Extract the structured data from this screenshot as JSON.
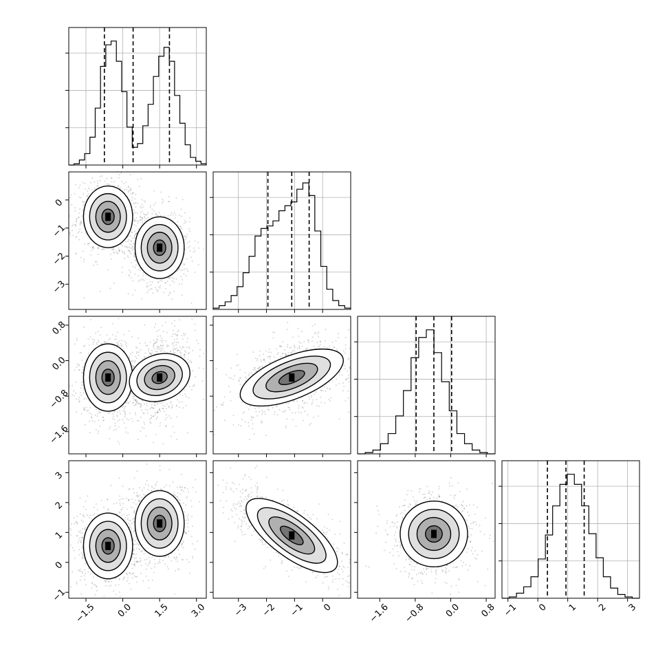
{
  "chart_data": {
    "type": "corner",
    "description": "Corner plot of 4 parameters: 1D histograms on the diagonal with 16/50/84 percentile dashed lines, 2D density/contour plots below.",
    "grid": true,
    "parameters": [
      {
        "range": [
          -2.2,
          3.4
        ],
        "ticks": [
          -1.5,
          0.0,
          1.5,
          3.0
        ],
        "tick_labels": [
          "−1.5",
          "0.0",
          "1.5",
          "3.0"
        ],
        "quantiles": [
          -0.75,
          0.42,
          1.9
        ],
        "histogram": [
          0,
          0.01,
          0.04,
          0.09,
          0.22,
          0.45,
          0.78,
          0.95,
          0.98,
          0.82,
          0.58,
          0.3,
          0.14,
          0.17,
          0.31,
          0.48,
          0.7,
          0.86,
          0.93,
          0.82,
          0.55,
          0.33,
          0.16,
          0.06,
          0.03,
          0.01
        ]
      },
      {
        "range": [
          -3.9,
          1.0
        ],
        "ticks": [
          -3,
          -2,
          -1,
          0
        ],
        "tick_labels": [
          "−3",
          "−2",
          "−1",
          "0"
        ],
        "quantiles": [
          -1.95,
          -1.1,
          -0.48
        ],
        "histogram": [
          0.01,
          0.03,
          0.06,
          0.11,
          0.18,
          0.29,
          0.42,
          0.58,
          0.64,
          0.66,
          0.7,
          0.78,
          0.82,
          0.85,
          0.95,
          1.0,
          0.9,
          0.62,
          0.34,
          0.16,
          0.07,
          0.03,
          0.01
        ]
      },
      {
        "range": [
          -2.1,
          1.0
        ],
        "ticks": [
          -1.6,
          -0.8,
          0.0,
          0.8
        ],
        "tick_labels": [
          "−1.6",
          "−0.8",
          "0.0",
          "0.8"
        ],
        "quantiles": [
          -0.78,
          -0.38,
          0.02
        ],
        "histogram": [
          0.0,
          0.01,
          0.03,
          0.08,
          0.16,
          0.3,
          0.5,
          0.76,
          0.92,
          0.98,
          0.8,
          0.57,
          0.34,
          0.16,
          0.08,
          0.03,
          0.01,
          0.0
        ]
      },
      {
        "range": [
          -1.2,
          3.4
        ],
        "ticks": [
          -1,
          0,
          1,
          2,
          3
        ],
        "tick_labels": [
          "−1",
          "0",
          "1",
          "2",
          "3"
        ],
        "quantiles": [
          0.32,
          0.94,
          1.55
        ],
        "histogram": [
          0.0,
          0.01,
          0.04,
          0.09,
          0.17,
          0.31,
          0.5,
          0.73,
          0.9,
          0.98,
          0.9,
          0.73,
          0.51,
          0.32,
          0.17,
          0.08,
          0.03,
          0.01,
          0.0
        ]
      }
    ],
    "pairs": [
      {
        "x": 0,
        "y": 1,
        "clusters": [
          {
            "cx": -0.6,
            "cy": -0.6,
            "sx": 0.5,
            "sy": 0.55,
            "rho": 0.0
          },
          {
            "cx": 1.5,
            "cy": -1.7,
            "sx": 0.5,
            "sy": 0.55,
            "rho": 0.0
          }
        ]
      },
      {
        "x": 0,
        "y": 2,
        "clusters": [
          {
            "cx": -0.6,
            "cy": -0.38,
            "sx": 0.5,
            "sy": 0.38,
            "rho": 0.0
          },
          {
            "cx": 1.5,
            "cy": -0.38,
            "sx": 0.55,
            "sy": 0.38,
            "rho": 0.35
          }
        ]
      },
      {
        "x": 1,
        "y": 2,
        "clusters": [
          {
            "cx": -1.1,
            "cy": -0.38,
            "sx": 0.85,
            "sy": 0.36,
            "rho": 0.4
          }
        ]
      },
      {
        "x": 0,
        "y": 3,
        "clusters": [
          {
            "cx": -0.6,
            "cy": 0.55,
            "sx": 0.5,
            "sy": 0.55,
            "rho": 0.0
          },
          {
            "cx": 1.5,
            "cy": 1.3,
            "sx": 0.5,
            "sy": 0.55,
            "rho": 0.0
          }
        ]
      },
      {
        "x": 1,
        "y": 3,
        "clusters": [
          {
            "cx": -1.1,
            "cy": 0.9,
            "sx": 0.85,
            "sy": 0.6,
            "rho": -0.75
          }
        ]
      },
      {
        "x": 2,
        "y": 3,
        "clusters": [
          {
            "cx": -0.38,
            "cy": 0.95,
            "sx": 0.38,
            "sy": 0.55,
            "rho": 0.0
          }
        ]
      }
    ]
  },
  "colors": {
    "ink": "#000000",
    "grid": "#b0b0b0",
    "points": "#5a5a5a",
    "background": "#ffffff"
  }
}
